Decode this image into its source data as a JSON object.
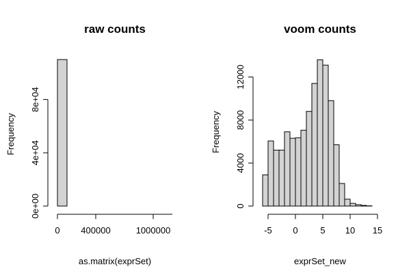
{
  "chart_data": [
    {
      "type": "histogram",
      "title": "raw counts",
      "x_label": "as.matrix(exprSet)",
      "y_label": "Frequency",
      "bins": [
        0,
        100000,
        200000,
        300000,
        400000,
        500000,
        600000,
        700000,
        800000,
        900000,
        1000000,
        1100000,
        1200000
      ],
      "values": [
        110000,
        0,
        0,
        0,
        0,
        0,
        0,
        0,
        0,
        0,
        0,
        0
      ],
      "color": "#d3d3d3",
      "xlim": [
        0,
        1200000
      ],
      "xticks": [
        0,
        400000,
        1000000
      ],
      "ylim": [
        0,
        110000
      ],
      "yticks": [
        {
          "value": 0,
          "label": "0e+00"
        },
        {
          "value": 40000,
          "label": "4e+04"
        },
        {
          "value": 80000,
          "label": "8e+04"
        }
      ]
    },
    {
      "type": "histogram",
      "title": "voom counts",
      "x_label": "exprSet_new",
      "y_label": "Frequency",
      "bins": [
        -6,
        -5,
        -4,
        -3,
        -2,
        -1,
        0,
        1,
        2,
        3,
        4,
        5,
        6,
        7,
        8,
        9,
        10,
        11,
        12,
        13,
        14
      ],
      "values": [
        2900,
        6050,
        5200,
        5200,
        6900,
        6300,
        6350,
        7050,
        8800,
        11400,
        13600,
        13100,
        9800,
        5700,
        2100,
        640,
        250,
        130,
        60,
        20
      ],
      "color": "#d3d3d3",
      "xlim": [
        -6,
        15
      ],
      "xticks": [
        -5,
        0,
        5,
        10,
        15
      ],
      "ylim": [
        0,
        14000
      ],
      "yticks": [
        0,
        4000,
        8000,
        12000
      ]
    }
  ]
}
